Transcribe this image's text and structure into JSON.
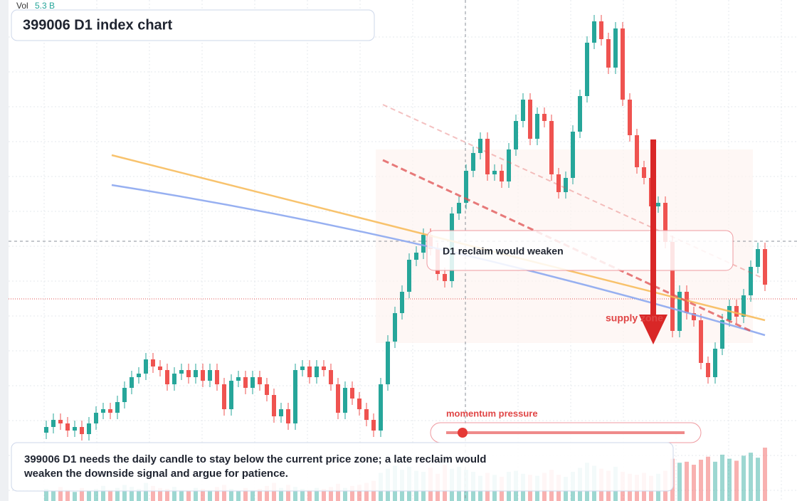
{
  "chart_data": {
    "type": "candlestick",
    "title": "399006 D1 index chart",
    "volume_title": "Vol",
    "volume_label": "5.3 B",
    "annotation": "D1 reclaim would weaken",
    "zone_label": "supply zone",
    "slider_label": "momentum pressure",
    "note": "399006 D1 needs the daily candle to stay below the current price zone; a late reclaim would weaken the downside signal and argue for patience.",
    "up_color": "#26a69a",
    "down_color": "#ef5350",
    "ylim": [
      0,
      704
    ],
    "open": [
      96,
      104,
      114,
      109,
      99,
      104,
      94,
      109,
      124,
      129,
      124,
      139,
      159,
      174,
      179,
      199,
      189,
      184,
      164,
      179,
      184,
      174,
      184,
      169,
      184,
      164,
      129,
      169,
      174,
      159,
      174,
      164,
      149,
      119,
      129,
      109,
      184,
      189,
      174,
      189,
      184,
      164,
      124,
      159,
      144,
      129,
      114,
      99,
      164,
      224,
      264,
      294,
      339,
      349,
      374,
      354,
      319,
      309,
      404,
      419,
      464,
      489,
      509,
      459,
      464,
      449,
      494,
      534,
      564,
      509,
      544,
      534,
      459,
      434,
      454,
      519,
      569,
      644,
      674,
      649,
      609,
      664,
      564,
      514,
      469,
      454,
      414,
      419,
      364,
      239,
      294,
      264,
      254,
      194,
      174,
      214,
      254,
      274,
      259,
      289,
      329,
      354
    ],
    "high": [
      113,
      123,
      123,
      118,
      113,
      113,
      118,
      133,
      138,
      138,
      148,
      168,
      183,
      188,
      208,
      208,
      198,
      193,
      188,
      193,
      193,
      193,
      193,
      193,
      193,
      173,
      178,
      183,
      183,
      183,
      183,
      173,
      158,
      138,
      138,
      193,
      198,
      198,
      198,
      198,
      193,
      173,
      168,
      168,
      153,
      138,
      123,
      173,
      233,
      273,
      303,
      348,
      358,
      383,
      383,
      363,
      328,
      413,
      428,
      473,
      498,
      518,
      518,
      473,
      473,
      503,
      543,
      573,
      573,
      553,
      553,
      543,
      468,
      463,
      528,
      578,
      653,
      683,
      683,
      658,
      673,
      673,
      573,
      523,
      478,
      463,
      428,
      428,
      373,
      303,
      303,
      273,
      263,
      203,
      223,
      263,
      283,
      283,
      298,
      338,
      363,
      363
    ],
    "low": [
      87,
      95,
      100,
      90,
      90,
      85,
      85,
      100,
      115,
      115,
      115,
      130,
      150,
      165,
      170,
      180,
      175,
      155,
      155,
      170,
      165,
      165,
      160,
      160,
      155,
      120,
      120,
      160,
      150,
      150,
      155,
      140,
      110,
      110,
      100,
      100,
      175,
      165,
      165,
      175,
      155,
      115,
      115,
      135,
      120,
      105,
      90,
      90,
      155,
      215,
      255,
      285,
      330,
      340,
      345,
      310,
      300,
      300,
      395,
      410,
      455,
      480,
      450,
      450,
      440,
      440,
      485,
      525,
      500,
      500,
      525,
      450,
      425,
      425,
      445,
      510,
      560,
      635,
      640,
      600,
      600,
      555,
      505,
      460,
      445,
      405,
      405,
      355,
      230,
      230,
      255,
      245,
      185,
      165,
      165,
      205,
      245,
      250,
      250,
      280,
      320,
      295
    ],
    "close": [
      104,
      114,
      109,
      99,
      104,
      94,
      109,
      124,
      129,
      124,
      139,
      159,
      174,
      179,
      199,
      189,
      184,
      164,
      179,
      184,
      174,
      184,
      169,
      184,
      164,
      129,
      169,
      174,
      159,
      174,
      164,
      149,
      119,
      129,
      109,
      184,
      189,
      174,
      189,
      184,
      164,
      124,
      159,
      144,
      129,
      114,
      99,
      164,
      224,
      264,
      294,
      339,
      349,
      374,
      354,
      319,
      309,
      404,
      419,
      464,
      489,
      509,
      459,
      464,
      449,
      494,
      534,
      564,
      509,
      544,
      534,
      459,
      434,
      454,
      519,
      569,
      644,
      674,
      649,
      609,
      664,
      564,
      514,
      469,
      454,
      414,
      419,
      364,
      239,
      294,
      264,
      254,
      194,
      174,
      214,
      254,
      274,
      259,
      289,
      329,
      354,
      304
    ],
    "volume": [
      1.2,
      1.0,
      1.4,
      1.1,
      0.9,
      1.3,
      1.0,
      1.2,
      1.5,
      1.1,
      1.3,
      1.6,
      1.4,
      1.2,
      1.8,
      1.5,
      1.3,
      1.2,
      1.4,
      1.1,
      1.0,
      1.3,
      1.2,
      1.1,
      1.4,
      1.6,
      1.2,
      1.0,
      1.3,
      1.1,
      1.2,
      1.5,
      1.8,
      1.3,
      1.6,
      1.4,
      1.2,
      1.1,
      1.3,
      1.2,
      1.4,
      1.7,
      1.3,
      1.5,
      1.6,
      1.8,
      2.0,
      2.8,
      3.2,
      3.5,
      3.1,
      3.4,
      3.0,
      2.9,
      3.3,
      2.7,
      3.6,
      3.2,
      3.4,
      3.1,
      2.9,
      2.5,
      2.8,
      2.6,
      2.4,
      2.9,
      3.0,
      2.7,
      2.6,
      2.5,
      2.8,
      3.1,
      2.6,
      2.4,
      2.9,
      3.3,
      3.8,
      3.5,
      3.2,
      3.0,
      3.4,
      2.9,
      2.7,
      2.6,
      2.8,
      2.5,
      2.7,
      3.0,
      4.2,
      3.8,
      3.9,
      3.6,
      4.1,
      4.4,
      3.9,
      4.6,
      4.2,
      4.0,
      4.5,
      4.8,
      4.3,
      5.3
    ]
  }
}
